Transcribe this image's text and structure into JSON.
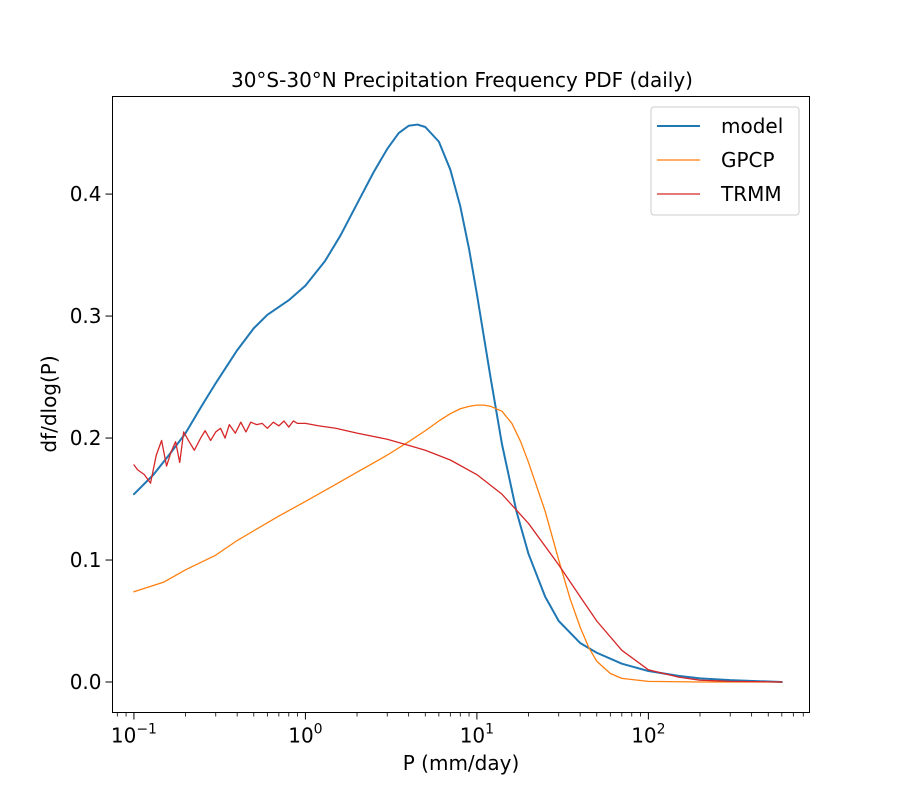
{
  "chart_data": {
    "type": "line",
    "title": "30°S-30°N Precipitation Frequency PDF (daily)",
    "xlabel": "P (mm/day)",
    "ylabel": "df/dlog(P)",
    "xscale": "log",
    "xlim": [
      0.075,
      870
    ],
    "ylim": [
      -0.025,
      0.48
    ],
    "x_ticks": [
      {
        "value": 0.1,
        "base": "10",
        "exp": "−1"
      },
      {
        "value": 1,
        "base": "10",
        "exp": "0"
      },
      {
        "value": 10,
        "base": "10",
        "exp": "1"
      },
      {
        "value": 100,
        "base": "10",
        "exp": "2"
      }
    ],
    "y_ticks": [
      {
        "value": 0.0,
        "label": "0.0"
      },
      {
        "value": 0.1,
        "label": "0.1"
      },
      {
        "value": 0.2,
        "label": "0.2"
      },
      {
        "value": 0.3,
        "label": "0.3"
      },
      {
        "value": 0.4,
        "label": "0.4"
      }
    ],
    "legend_position": "top-right",
    "series": [
      {
        "name": "model",
        "color": "#1f77b4",
        "line_width": 2,
        "points": [
          [
            0.1,
            0.154
          ],
          [
            0.13,
            0.17
          ],
          [
            0.16,
            0.186
          ],
          [
            0.2,
            0.204
          ],
          [
            0.25,
            0.227
          ],
          [
            0.3,
            0.245
          ],
          [
            0.4,
            0.272
          ],
          [
            0.5,
            0.29
          ],
          [
            0.6,
            0.301
          ],
          [
            0.8,
            0.313
          ],
          [
            1.0,
            0.325
          ],
          [
            1.3,
            0.345
          ],
          [
            1.6,
            0.366
          ],
          [
            2.0,
            0.392
          ],
          [
            2.5,
            0.418
          ],
          [
            3.0,
            0.437
          ],
          [
            3.5,
            0.45
          ],
          [
            4.0,
            0.456
          ],
          [
            4.5,
            0.457
          ],
          [
            5.0,
            0.455
          ],
          [
            6.0,
            0.443
          ],
          [
            7.0,
            0.42
          ],
          [
            8.0,
            0.39
          ],
          [
            9.0,
            0.355
          ],
          [
            10.0,
            0.318
          ],
          [
            12.0,
            0.25
          ],
          [
            14.0,
            0.195
          ],
          [
            17.0,
            0.14
          ],
          [
            20.0,
            0.105
          ],
          [
            25.0,
            0.07
          ],
          [
            30.0,
            0.05
          ],
          [
            40.0,
            0.032
          ],
          [
            50.0,
            0.024
          ],
          [
            70.0,
            0.015
          ],
          [
            100.0,
            0.009
          ],
          [
            150.0,
            0.005
          ],
          [
            200.0,
            0.003
          ],
          [
            300.0,
            0.0015
          ],
          [
            600.0,
            0.0
          ]
        ]
      },
      {
        "name": "GPCP",
        "color": "#ff7f0e",
        "line_width": 1.3,
        "points": [
          [
            0.1,
            0.074
          ],
          [
            0.15,
            0.082
          ],
          [
            0.2,
            0.092
          ],
          [
            0.3,
            0.104
          ],
          [
            0.4,
            0.116
          ],
          [
            0.5,
            0.124
          ],
          [
            0.7,
            0.136
          ],
          [
            1.0,
            0.148
          ],
          [
            1.5,
            0.162
          ],
          [
            2.0,
            0.172
          ],
          [
            3.0,
            0.186
          ],
          [
            4.0,
            0.197
          ],
          [
            5.0,
            0.206
          ],
          [
            6.0,
            0.214
          ],
          [
            7.0,
            0.22
          ],
          [
            8.0,
            0.224
          ],
          [
            9.0,
            0.226
          ],
          [
            10.0,
            0.227
          ],
          [
            11.0,
            0.227
          ],
          [
            12.0,
            0.226
          ],
          [
            14.0,
            0.222
          ],
          [
            16.0,
            0.212
          ],
          [
            18.0,
            0.197
          ],
          [
            20.0,
            0.18
          ],
          [
            25.0,
            0.14
          ],
          [
            30.0,
            0.1
          ],
          [
            35.0,
            0.068
          ],
          [
            40.0,
            0.045
          ],
          [
            45.0,
            0.028
          ],
          [
            50.0,
            0.017
          ],
          [
            60.0,
            0.007
          ],
          [
            70.0,
            0.003
          ],
          [
            100.0,
            0.0005
          ],
          [
            200.0,
            0.0
          ],
          [
            600.0,
            0.0
          ]
        ]
      },
      {
        "name": "TRMM",
        "color": "#d62728",
        "line_width": 1.3,
        "points": [
          [
            0.1,
            0.178
          ],
          [
            0.105,
            0.174
          ],
          [
            0.115,
            0.17
          ],
          [
            0.125,
            0.163
          ],
          [
            0.135,
            0.186
          ],
          [
            0.145,
            0.198
          ],
          [
            0.155,
            0.177
          ],
          [
            0.165,
            0.189
          ],
          [
            0.175,
            0.197
          ],
          [
            0.185,
            0.18
          ],
          [
            0.195,
            0.205
          ],
          [
            0.21,
            0.197
          ],
          [
            0.225,
            0.19
          ],
          [
            0.245,
            0.2
          ],
          [
            0.26,
            0.206
          ],
          [
            0.28,
            0.198
          ],
          [
            0.3,
            0.205
          ],
          [
            0.32,
            0.208
          ],
          [
            0.34,
            0.2
          ],
          [
            0.36,
            0.211
          ],
          [
            0.39,
            0.204
          ],
          [
            0.42,
            0.213
          ],
          [
            0.45,
            0.205
          ],
          [
            0.48,
            0.213
          ],
          [
            0.52,
            0.211
          ],
          [
            0.56,
            0.212
          ],
          [
            0.6,
            0.208
          ],
          [
            0.65,
            0.213
          ],
          [
            0.7,
            0.21
          ],
          [
            0.75,
            0.214
          ],
          [
            0.8,
            0.209
          ],
          [
            0.85,
            0.214
          ],
          [
            0.9,
            0.212
          ],
          [
            1.0,
            0.212
          ],
          [
            1.2,
            0.21
          ],
          [
            1.5,
            0.208
          ],
          [
            2.0,
            0.204
          ],
          [
            3.0,
            0.199
          ],
          [
            4.0,
            0.194
          ],
          [
            5.0,
            0.19
          ],
          [
            7.0,
            0.182
          ],
          [
            10.0,
            0.17
          ],
          [
            14.0,
            0.154
          ],
          [
            20.0,
            0.13
          ],
          [
            30.0,
            0.096
          ],
          [
            40.0,
            0.07
          ],
          [
            50.0,
            0.05
          ],
          [
            70.0,
            0.026
          ],
          [
            100.0,
            0.01
          ],
          [
            150.0,
            0.004
          ],
          [
            200.0,
            0.0015
          ],
          [
            300.0,
            0.0005
          ],
          [
            600.0,
            0.0
          ]
        ]
      }
    ]
  }
}
